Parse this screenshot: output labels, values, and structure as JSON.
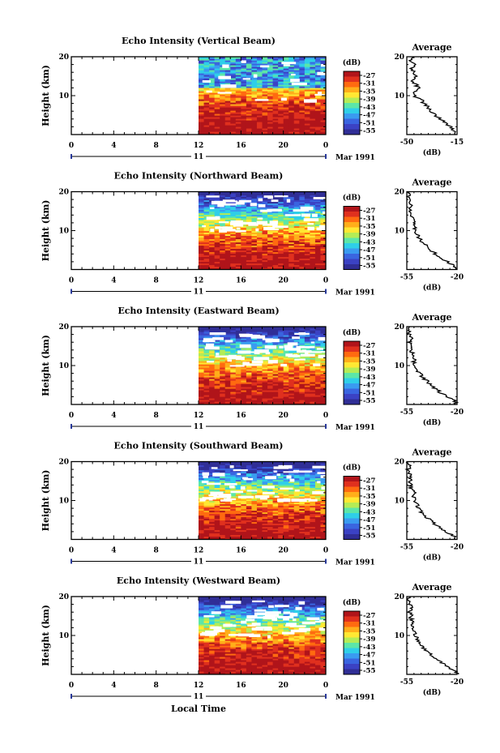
{
  "chart_data": {
    "type": "heatmap",
    "common": {
      "time_xticks": [
        "0",
        "4",
        "8",
        "12",
        "16",
        "20",
        "0"
      ],
      "time_range_hours": [
        0,
        24
      ],
      "date_label": "11",
      "month_year_label": "Mar 1991",
      "xlabel_bottom": "Local Time",
      "height_ylabel": "Height (km)",
      "height_yticks": [
        "20",
        "10"
      ],
      "height_range_km": [
        0,
        20
      ],
      "data_start_hour": 12,
      "colorbar_unit": "(dB)",
      "colorbar_ticks": [
        "-27",
        "-31",
        "-35",
        "-39",
        "-43",
        "-47",
        "-51",
        "-55"
      ],
      "colorbar_colors": [
        "#b0141a",
        "#e0301e",
        "#ff6a10",
        "#ffae1a",
        "#ffe833",
        "#b4ec56",
        "#5ce6a8",
        "#2fcfe8",
        "#3a9bf0",
        "#3a65e0",
        "#3b42c4",
        "#302e96"
      ],
      "profile_title": "Average",
      "profile_xlabel": "(dB)",
      "profile_yticks": [
        "20",
        "10"
      ]
    },
    "panels": [
      {
        "title": "Echo Intensity (Vertical Beam)",
        "profile_xticks": [
          "-50",
          "-15"
        ],
        "profile_xlim": [
          -50,
          -15
        ],
        "profile": [
          [
            0,
            -16
          ],
          [
            1,
            -17
          ],
          [
            2,
            -20
          ],
          [
            3,
            -23
          ],
          [
            4,
            -27
          ],
          [
            5,
            -30
          ],
          [
            6,
            -33
          ],
          [
            7,
            -35
          ],
          [
            8,
            -38
          ],
          [
            9,
            -40
          ],
          [
            10,
            -45
          ],
          [
            11,
            -44
          ],
          [
            12,
            -42
          ],
          [
            13,
            -44
          ],
          [
            14,
            -46
          ],
          [
            15,
            -43
          ],
          [
            16,
            -45
          ],
          [
            17,
            -47
          ],
          [
            18,
            -44
          ],
          [
            19,
            -47
          ],
          [
            20,
            -45
          ]
        ]
      },
      {
        "title": "Echo Intensity (Northward Beam)",
        "profile_xticks": [
          "-55",
          "-20"
        ],
        "profile_xlim": [
          -55,
          -20
        ],
        "profile": [
          [
            0,
            -20
          ],
          [
            1,
            -22
          ],
          [
            2,
            -27
          ],
          [
            3,
            -31
          ],
          [
            4,
            -35
          ],
          [
            5,
            -38
          ],
          [
            6,
            -41
          ],
          [
            7,
            -44
          ],
          [
            8,
            -46
          ],
          [
            9,
            -48
          ],
          [
            10,
            -49
          ],
          [
            11,
            -50
          ],
          [
            12,
            -50
          ],
          [
            13,
            -51
          ],
          [
            14,
            -52
          ],
          [
            15,
            -52
          ],
          [
            16,
            -53
          ],
          [
            17,
            -52
          ],
          [
            18,
            -53
          ],
          [
            19,
            -54
          ],
          [
            20,
            -53
          ]
        ]
      },
      {
        "title": "Echo Intensity (Eastward Beam)",
        "profile_xticks": [
          "-55",
          "-20"
        ],
        "profile_xlim": [
          -55,
          -20
        ],
        "profile": [
          [
            0,
            -20
          ],
          [
            1,
            -22
          ],
          [
            2,
            -27
          ],
          [
            3,
            -31
          ],
          [
            4,
            -35
          ],
          [
            5,
            -38
          ],
          [
            6,
            -41
          ],
          [
            7,
            -44
          ],
          [
            8,
            -46
          ],
          [
            9,
            -48
          ],
          [
            10,
            -49
          ],
          [
            11,
            -50
          ],
          [
            12,
            -50
          ],
          [
            13,
            -51
          ],
          [
            14,
            -52
          ],
          [
            15,
            -52
          ],
          [
            16,
            -53
          ],
          [
            17,
            -52
          ],
          [
            18,
            -53
          ],
          [
            19,
            -54
          ],
          [
            20,
            -53
          ]
        ]
      },
      {
        "title": "Echo Intensity (Southward Beam)",
        "profile_xticks": [
          "-55",
          "-20"
        ],
        "profile_xlim": [
          -55,
          -20
        ],
        "profile": [
          [
            0,
            -20
          ],
          [
            1,
            -23
          ],
          [
            2,
            -28
          ],
          [
            3,
            -32
          ],
          [
            4,
            -36
          ],
          [
            5,
            -39
          ],
          [
            6,
            -42
          ],
          [
            7,
            -45
          ],
          [
            8,
            -47
          ],
          [
            9,
            -48
          ],
          [
            10,
            -49
          ],
          [
            11,
            -51
          ],
          [
            12,
            -50
          ],
          [
            13,
            -52
          ],
          [
            14,
            -52
          ],
          [
            15,
            -53
          ],
          [
            16,
            -52
          ],
          [
            17,
            -53
          ],
          [
            18,
            -54
          ],
          [
            19,
            -53
          ],
          [
            20,
            -54
          ]
        ]
      },
      {
        "title": "Echo Intensity (Westward Beam)",
        "profile_xticks": [
          "-55",
          "-20"
        ],
        "profile_xlim": [
          -55,
          -20
        ],
        "profile": [
          [
            0,
            -20
          ],
          [
            1,
            -22
          ],
          [
            2,
            -27
          ],
          [
            3,
            -31
          ],
          [
            4,
            -35
          ],
          [
            5,
            -38
          ],
          [
            6,
            -41
          ],
          [
            7,
            -44
          ],
          [
            8,
            -46
          ],
          [
            9,
            -48
          ],
          [
            10,
            -49
          ],
          [
            11,
            -50
          ],
          [
            12,
            -50
          ],
          [
            13,
            -51
          ],
          [
            14,
            -52
          ],
          [
            15,
            -52
          ],
          [
            16,
            -53
          ],
          [
            17,
            -52
          ],
          [
            18,
            -53
          ],
          [
            19,
            -54
          ],
          [
            20,
            -53
          ]
        ]
      }
    ]
  }
}
